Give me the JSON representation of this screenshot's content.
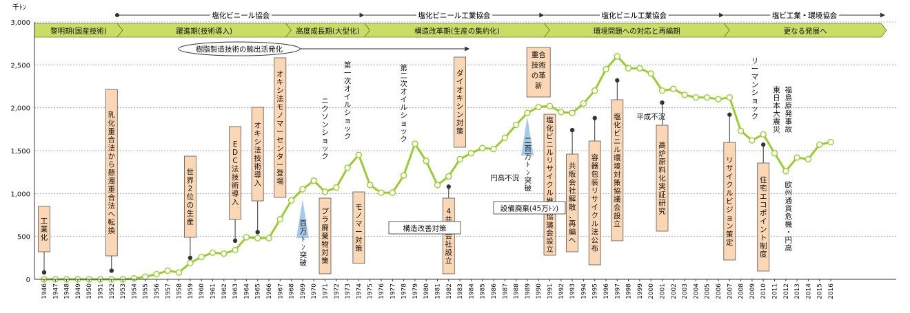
{
  "chart_data": {
    "type": "line",
    "y_unit_label": "千ﾄﾝ",
    "ylim": [
      0,
      3000
    ],
    "y_ticks": [
      "0",
      "500",
      "1,000",
      "1,500",
      "2,000",
      "2,500",
      "3,000"
    ],
    "grid": true,
    "years": [
      1946,
      1947,
      1948,
      1949,
      1950,
      1951,
      1952,
      1953,
      1954,
      1955,
      1956,
      1957,
      1958,
      1959,
      1960,
      1961,
      1962,
      1963,
      1964,
      1965,
      1966,
      1967,
      1968,
      1969,
      1970,
      1971,
      1972,
      1973,
      1974,
      1975,
      1976,
      1977,
      1978,
      1979,
      1980,
      1981,
      1982,
      1983,
      1984,
      1985,
      1986,
      1987,
      1988,
      1989,
      1990,
      1991,
      1992,
      1993,
      1994,
      1995,
      1996,
      1997,
      1998,
      1999,
      2000,
      2001,
      2002,
      2003,
      2004,
      2005,
      2006,
      2007,
      2008,
      2009,
      2010,
      2011,
      2012,
      2013,
      2014,
      2015,
      2016
    ],
    "values": [
      0,
      0,
      0,
      0,
      0,
      0,
      0,
      0,
      10,
      30,
      60,
      100,
      80,
      190,
      260,
      310,
      300,
      340,
      490,
      480,
      480,
      700,
      920,
      1050,
      1150,
      1020,
      1070,
      1300,
      1450,
      1100,
      1010,
      1010,
      1210,
      1580,
      1380,
      1100,
      1200,
      1400,
      1470,
      1530,
      1520,
      1650,
      1800,
      1940,
      2010,
      2020,
      1950,
      1940,
      2050,
      2200,
      2450,
      2600,
      2460,
      2460,
      2400,
      2200,
      2220,
      2150,
      2120,
      2120,
      2100,
      2120,
      1730,
      1620,
      1690,
      1470,
      1260,
      1420,
      1400,
      1570,
      1600
    ],
    "eras": [
      {
        "label": "黎明期(国産技術)",
        "from": 1946,
        "to": 1952
      },
      {
        "label": "躍進期(技術導入)",
        "from": 1952,
        "to": 1967
      },
      {
        "label": "高度成長期(大型化)",
        "from": 1967,
        "to": 1974
      },
      {
        "label": "構造改革期(生産の集約化)",
        "from": 1974,
        "to": 1990
      },
      {
        "label": "環境問題への対応と再編期",
        "from": 1990,
        "to": 2006
      },
      {
        "label": "更なる発展へ",
        "from": 2006,
        "to": 2016
      }
    ],
    "organizations": [
      {
        "label": "塩化ビニール協会",
        "from": 1952,
        "to": 1974
      },
      {
        "label": "塩化ビニール工業協会",
        "from": 1974,
        "to": 1990
      },
      {
        "label": "塩化ビニル工業協会",
        "from": 1990,
        "to": 2006
      },
      {
        "label": "塩ビ工業・環境協会",
        "from": 2006,
        "to": 2016
      }
    ],
    "export_arrow": {
      "label": "樹脂製造技術の輸出活発化",
      "to": 1983
    },
    "milestones": [
      {
        "label": "百万ﾄﾝ突破",
        "year": 1969
      },
      {
        "label": "二百万ﾄﾝ突破",
        "year": 1989
      }
    ],
    "boxed_events": [
      {
        "label": "工業化",
        "year": 1946,
        "dot_value": 80
      },
      {
        "label": "乳化重合法から懸濁重合法へ転換",
        "year": 1952,
        "dot_value": 100
      },
      {
        "label": "世界2位の生産",
        "year": 1959,
        "dot_value": 250
      },
      {
        "label": "EDC法技術導入",
        "year": 1963,
        "dot_value": 450
      },
      {
        "label": "オキシ法技術導入",
        "year": 1965,
        "dot_value": 550
      },
      {
        "label": "オキシ法モノマーセンター登場",
        "year": 1967
      },
      {
        "label": "プラ廃棄物対策",
        "year": 1971
      },
      {
        "label": "モノマー対策",
        "year": 1974
      },
      {
        "label": "4共販会社設立",
        "year": 1982,
        "dot_value": 1080
      },
      {
        "label": "ダイオキシン対策",
        "year": 1983
      },
      {
        "label": "重合技術の革新",
        "year": 1990
      },
      {
        "label": "塩化ビニルリサイクル推進協議会設立",
        "year": 1991
      },
      {
        "label": "共販会社解散、再編へ",
        "year": 1993,
        "dot_value": 1740
      },
      {
        "label": "容器包装リサイクル法公布",
        "year": 1995,
        "dot_value": 1880
      },
      {
        "label": "塩化ビニル環境対策協議会設立",
        "year": 1997,
        "dot_value": 2320
      },
      {
        "label": "高炉原料化実証研究",
        "year": 2001,
        "dot_value": 2060
      },
      {
        "label": "リサイクルビジョン策定",
        "year": 2007,
        "dot_value": 1920
      },
      {
        "label": "住宅エコポイント制度",
        "year": 2010,
        "dot_value": 1570
      }
    ],
    "annotations": [
      {
        "label": "ニクソンショック",
        "year": 1971
      },
      {
        "label": "第一次オイルショック",
        "year": 1973
      },
      {
        "label": "第二次オイルショック",
        "year": 1978
      },
      {
        "label": "円高不況",
        "year": 1987
      },
      {
        "label": "構造改善対策",
        "year": 1978
      },
      {
        "label": "設備廃棄(45万ﾄﾝ)",
        "year": 1986
      },
      {
        "label": "平成不況",
        "year": 2000
      },
      {
        "label": "リーマンショック",
        "year": 2009
      },
      {
        "label": "東日本大震災",
        "year": 2011
      },
      {
        "label": "福島原発事故",
        "year": 2012
      },
      {
        "label": "欧州通貨危機・円高",
        "year": 2012
      }
    ],
    "colors": {
      "line": "#99cc33",
      "era_fill": "#ccdd66",
      "era_stroke": "#667722",
      "box_fill": "#fbd7b5",
      "box_stroke": "#555555",
      "milestone": "#9dc3e6",
      "grid": "#999999"
    }
  }
}
